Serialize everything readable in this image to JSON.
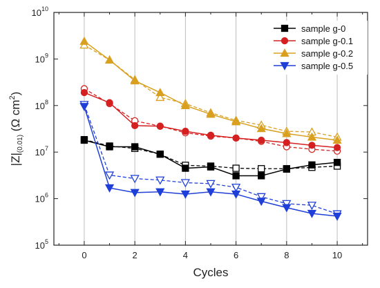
{
  "chart_data": {
    "type": "line",
    "title": "",
    "xlabel": "Cycles",
    "ylabel": "|Z|",
    "ylabel_subscript": "(0.01)",
    "ylabel_units_prefix": " (Ω cm",
    "ylabel_units_sup": "2",
    "ylabel_units_suffix": ")",
    "xlim": [
      -1.2,
      11.2
    ],
    "ylim": [
      100000,
      10000000000
    ],
    "yscale": "log",
    "x_ticks": [
      0,
      2,
      4,
      6,
      8,
      10
    ],
    "x_tick_labels": [
      "0",
      "2",
      "4",
      "6",
      "8",
      "10"
    ],
    "y_ticks": [
      100000,
      1000000,
      10000000,
      100000000,
      1000000000,
      10000000000
    ],
    "y_tick_labels": [
      {
        "base": "10",
        "exp": "5"
      },
      {
        "base": "10",
        "exp": "6"
      },
      {
        "base": "10",
        "exp": "7"
      },
      {
        "base": "10",
        "exp": "8"
      },
      {
        "base": "10",
        "exp": "9"
      },
      {
        "base": "10",
        "exp": "10"
      }
    ],
    "vertical_grid": true,
    "legend_position": "top-right",
    "x": [
      0,
      1,
      2,
      3,
      4,
      5,
      6,
      7,
      8,
      9,
      10
    ],
    "series": [
      {
        "name": "sample g-0",
        "color": "#000000",
        "marker": "square",
        "values": [
          18000000,
          13000000,
          13000000,
          9000000,
          4500000,
          4800000,
          3100000,
          3100000,
          4300000,
          5300000,
          6000000
        ],
        "dashed_values": [
          18500000,
          13500000,
          12000000,
          9000000,
          5200000,
          5000000,
          4500000,
          4400000,
          4400000,
          4700000,
          5000000
        ]
      },
      {
        "name": "sample g-0.1",
        "color": "#d42020",
        "marker": "circle",
        "values": [
          190000000,
          115000000,
          37000000,
          36000000,
          28000000,
          23000000,
          20000000,
          18000000,
          16000000,
          14000000,
          12500000
        ],
        "dashed_values": [
          230000000,
          110000000,
          47000000,
          36000000,
          26000000,
          22000000,
          20000000,
          17000000,
          13000000,
          11500000,
          10500000
        ]
      },
      {
        "name": "sample g-0.2",
        "color": "#d9a020",
        "marker": "triangle-up",
        "values": [
          2400000000,
          950000000,
          340000000,
          190000000,
          100000000,
          65000000,
          45000000,
          32000000,
          25000000,
          21000000,
          18000000
        ],
        "dashed_values": [
          2000000000,
          950000000,
          360000000,
          150000000,
          110000000,
          70000000,
          48000000,
          38000000,
          28000000,
          27000000,
          21000000
        ]
      },
      {
        "name": "sample g-0.5",
        "color": "#1f3fd8",
        "marker": "triangle-down",
        "values": [
          95000000,
          1700000,
          1350000,
          1400000,
          1250000,
          1400000,
          1250000,
          880000,
          640000,
          480000,
          420000
        ],
        "dashed_values": [
          105000000,
          3200000,
          2700000,
          2500000,
          2200000,
          2100000,
          1750000,
          1100000,
          780000,
          720000,
          470000
        ]
      }
    ]
  }
}
